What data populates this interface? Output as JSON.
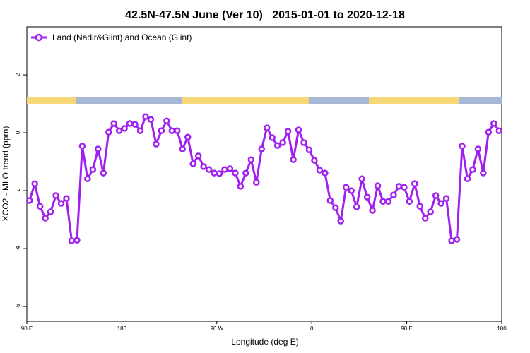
{
  "chart_data": {
    "type": "line",
    "title": "42.5N-47.5N June (Ver 10)   2015-01-01 to 2020-12-18",
    "x_label": "Longitude (deg E)",
    "y_label": "XCO2 - MLO trend (ppm)",
    "x": [
      92.5,
      97.5,
      102.5,
      107.5,
      112.5,
      117.5,
      122.5,
      127.5,
      132.5,
      137.5,
      142.5,
      147.5,
      152.5,
      157.5,
      162.5,
      167.5,
      172.5,
      177.5,
      182.5,
      187.5,
      192.5,
      197.5,
      202.5,
      207.5,
      212.5,
      217.5,
      222.5,
      227.5,
      232.5,
      237.5,
      242.5,
      247.5,
      252.5,
      257.5,
      262.5,
      267.5,
      272.5,
      277.5,
      282.5,
      287.5,
      292.5,
      297.5,
      302.5,
      307.5,
      312.5,
      317.5,
      322.5,
      327.5,
      332.5,
      337.5,
      342.5,
      347.5,
      352.5,
      357.5,
      362.5,
      367.5,
      372.5,
      377.5,
      382.5,
      387.5,
      392.5,
      397.5,
      402.5,
      407.5,
      412.5,
      417.5,
      422.5,
      427.5,
      432.5,
      437.5,
      442.5,
      447.5,
      452.5,
      457.5,
      462.5,
      467.5,
      472.5,
      477.5,
      482.5,
      487.5,
      492.5,
      497.5,
      502.5,
      507.5,
      512.5,
      517.5,
      522.5,
      527.5,
      532.5,
      537.5
    ],
    "series": [
      {
        "name": "Land (Nadir&Glint) and Ocean (Glint)",
        "color": "#a020f0",
        "values": [
          -2.34,
          -1.76,
          -2.54,
          -2.95,
          -2.73,
          -2.17,
          -2.44,
          -2.27,
          -3.73,
          -3.71,
          -0.46,
          -1.59,
          -1.27,
          -0.56,
          -1.39,
          0.02,
          0.32,
          0.07,
          0.15,
          0.32,
          0.29,
          0.07,
          0.56,
          0.46,
          -0.39,
          0.07,
          0.41,
          0.07,
          0.07,
          -0.56,
          -0.15,
          -1.07,
          -0.8,
          -1.17,
          -1.27,
          -1.39,
          -1.41,
          -1.27,
          -1.24,
          -1.39,
          -1.85,
          -1.39,
          -0.93,
          -1.71,
          -0.56,
          0.17,
          -0.17,
          -0.44,
          -0.34,
          0.05,
          -0.93,
          0.1,
          -0.34,
          -0.59,
          -0.95,
          -1.29,
          -1.39,
          -2.34,
          -2.59,
          -3.05,
          -1.88,
          -2.0,
          -2.56,
          -1.59,
          -2.22,
          -2.68,
          -1.83,
          -2.37,
          -2.37,
          -2.15,
          -1.85,
          -1.88,
          -2.37,
          -1.76,
          -2.54,
          -2.95,
          -2.73,
          -2.17,
          -2.44,
          -2.27,
          -3.73,
          -3.68,
          -0.46,
          -1.59,
          -1.27,
          -0.56,
          -1.39,
          0.02,
          0.32,
          0.07
        ]
      }
    ],
    "xlim": [
      90,
      540
    ],
    "xticks": [
      {
        "value": 90,
        "label": "90 E"
      },
      180,
      {
        "value": 270,
        "label": "90 W"
      },
      {
        "value": 360,
        "label": "0"
      },
      {
        "value": 450,
        "label": "90 E"
      },
      {
        "value": 540,
        "label": "180"
      }
    ],
    "ylim": [
      -6.51,
      3.66
    ],
    "yticks": [
      -6,
      -4,
      -2,
      0,
      2
    ],
    "legend": "top-left"
  }
}
